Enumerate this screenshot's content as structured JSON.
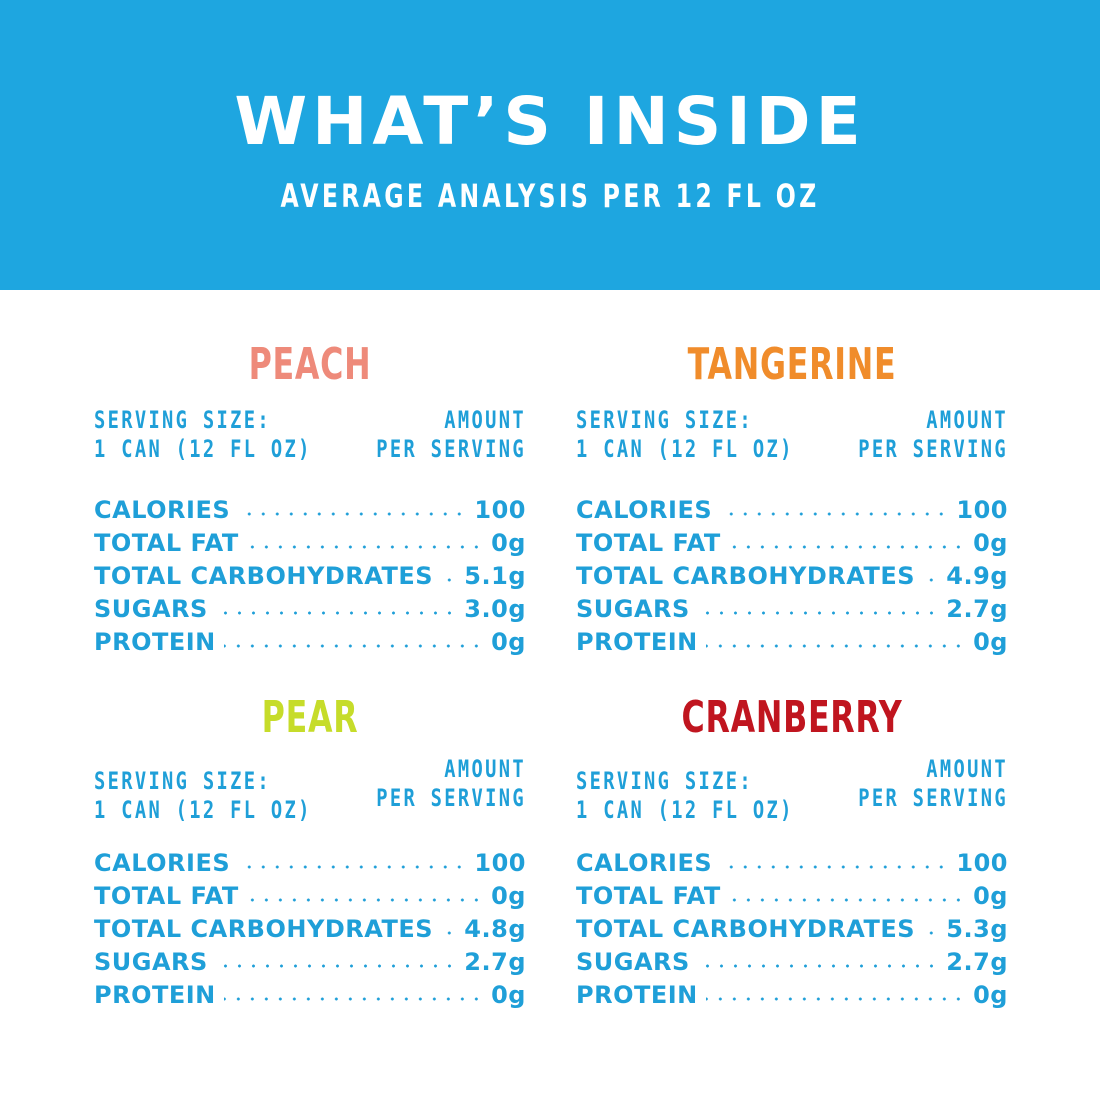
{
  "colors": {
    "header_bg": "#1ea6e0",
    "text_blue": "#1f9fd8",
    "peach": "#ee8a7a",
    "tangerine": "#f08c2b",
    "pear": "#c6dc2a",
    "cranberry": "#c0151f"
  },
  "header": {
    "title": "WHAT’S INSIDE",
    "subtitle": "AVERAGE ANALYSIS PER 12 FL OZ"
  },
  "flavors": [
    {
      "name": "PEACH",
      "serving_label": "SERVING SIZE:",
      "serving_value": "1 CAN (12 FL OZ)",
      "amount_label": "AMOUNT",
      "amount_sub": "PER SERVING",
      "nutrients": [
        {
          "label": "CALORIES",
          "value": "100"
        },
        {
          "label": "TOTAL FAT",
          "value": "0g"
        },
        {
          "label": "TOTAL CARBOHYDRATES",
          "value": "5.1g"
        },
        {
          "label": "SUGARS",
          "value": "3.0g"
        },
        {
          "label": "PROTEIN",
          "value": "0g"
        }
      ]
    },
    {
      "name": "TANGERINE",
      "serving_label": "SERVING SIZE:",
      "serving_value": "1 CAN (12 FL OZ)",
      "amount_label": "AMOUNT",
      "amount_sub": "PER SERVING",
      "nutrients": [
        {
          "label": "CALORIES",
          "value": "100"
        },
        {
          "label": "TOTAL FAT",
          "value": "0g"
        },
        {
          "label": "TOTAL CARBOHYDRATES",
          "value": "4.9g"
        },
        {
          "label": "SUGARS",
          "value": "2.7g"
        },
        {
          "label": "PROTEIN",
          "value": "0g"
        }
      ]
    },
    {
      "name": "PEAR",
      "serving_label": "SERVING SIZE:",
      "serving_value": "1 CAN (12 FL OZ)",
      "amount_label": "AMOUNT",
      "amount_sub": "PER SERVING",
      "nutrients": [
        {
          "label": "CALORIES",
          "value": "100"
        },
        {
          "label": "TOTAL FAT",
          "value": "0g"
        },
        {
          "label": "TOTAL CARBOHYDRATES",
          "value": "4.8g"
        },
        {
          "label": "SUGARS",
          "value": "2.7g"
        },
        {
          "label": "PROTEIN",
          "value": "0g"
        }
      ]
    },
    {
      "name": "CRANBERRY",
      "serving_label": "SERVING SIZE:",
      "serving_value": "1 CAN (12 FL OZ)",
      "amount_label": "AMOUNT",
      "amount_sub": "PER SERVING",
      "nutrients": [
        {
          "label": "CALORIES",
          "value": "100"
        },
        {
          "label": "TOTAL FAT",
          "value": "0g"
        },
        {
          "label": "TOTAL CARBOHYDRATES",
          "value": "5.3g"
        },
        {
          "label": "SUGARS",
          "value": "2.7g"
        },
        {
          "label": "PROTEIN",
          "value": "0g"
        }
      ]
    }
  ]
}
